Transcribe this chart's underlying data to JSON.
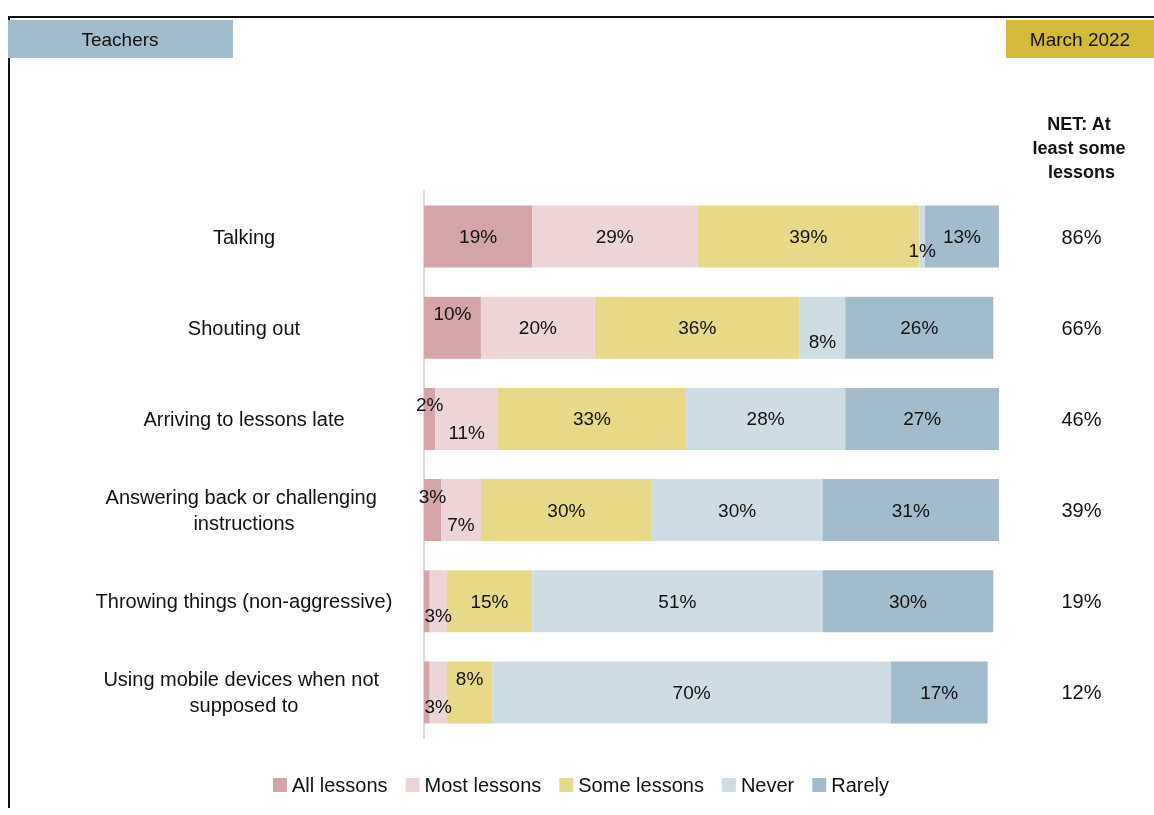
{
  "chart_data": {
    "type": "bar",
    "orientation": "horizontal",
    "stacked": true,
    "title": "Teachers",
    "subtitle": "March 2022",
    "categories": [
      "Talking",
      "Shouting out",
      "Arriving to lessons late",
      "Answering back or challenging instructions",
      "Throwing things (non-aggressive)",
      "Using mobile devices when not supposed to"
    ],
    "series": [
      {
        "name": "All lessons",
        "color": "#d4a5a8",
        "values": [
          19,
          10,
          2,
          3,
          1,
          1
        ],
        "value_labels": [
          "19%",
          "10%",
          "2%",
          "3%",
          null,
          null
        ]
      },
      {
        "name": "Most lessons",
        "color": "#ebd5d6",
        "values": [
          29,
          20,
          11,
          7,
          3,
          3
        ],
        "value_labels": [
          "29%",
          "20%",
          "11%",
          "7%",
          "3%",
          "3%"
        ]
      },
      {
        "name": "Some lessons",
        "color": "#e6d987",
        "values": [
          39,
          36,
          33,
          30,
          15,
          8
        ],
        "value_labels": [
          "39%",
          "36%",
          "33%",
          "30%",
          "15%",
          "8%"
        ]
      },
      {
        "name": "Never",
        "color": "#d0dce4",
        "values": [
          1,
          8,
          28,
          30,
          51,
          70
        ],
        "value_labels": [
          "1%",
          "8%",
          "28%",
          "30%",
          "51%",
          "70%"
        ]
      },
      {
        "name": "Rarely",
        "color": "#a3bccb",
        "values": [
          13,
          26,
          27,
          31,
          30,
          17
        ],
        "value_labels": [
          "13%",
          "26%",
          "27%",
          "31%",
          "30%",
          "17%"
        ]
      }
    ],
    "annotations": [
      "NET: At least some lessons",
      "86%",
      "66%",
      "46%",
      "39%",
      "19%",
      "12%"
    ],
    "legend": "bottom"
  }
}
